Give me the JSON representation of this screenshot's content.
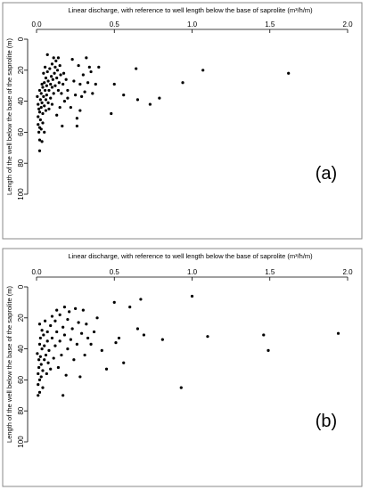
{
  "chart_data": [
    {
      "type": "scatter",
      "panel_label": "(a)",
      "xlabel": "Linear discharge, with reference to well length below the base of saprolite (m³/h/m)",
      "ylabel": "Length of the well below the base of the saprolite (m)",
      "xlim": [
        0,
        2.0
      ],
      "ylim": [
        0,
        100
      ],
      "y_reversed": true,
      "x_axis_position": "top",
      "x_ticks": [
        "0.0",
        "0.5",
        "1.0",
        "1.5",
        "2.0"
      ],
      "y_ticks": [
        "0",
        "20",
        "40",
        "60",
        "80",
        "100"
      ],
      "grid": false,
      "points": [
        [
          0.005,
          37
        ],
        [
          0.01,
          42
        ],
        [
          0.01,
          50
        ],
        [
          0.01,
          55
        ],
        [
          0.015,
          45
        ],
        [
          0.015,
          60
        ],
        [
          0.02,
          33
        ],
        [
          0.02,
          47
        ],
        [
          0.02,
          57
        ],
        [
          0.02,
          65
        ],
        [
          0.02,
          72
        ],
        [
          0.025,
          39
        ],
        [
          0.025,
          52
        ],
        [
          0.03,
          35
        ],
        [
          0.03,
          44
        ],
        [
          0.03,
          58
        ],
        [
          0.035,
          29
        ],
        [
          0.035,
          41
        ],
        [
          0.035,
          66
        ],
        [
          0.04,
          31
        ],
        [
          0.04,
          48
        ],
        [
          0.04,
          54
        ],
        [
          0.045,
          37
        ],
        [
          0.045,
          22
        ],
        [
          0.05,
          28
        ],
        [
          0.05,
          43
        ],
        [
          0.05,
          60
        ],
        [
          0.055,
          33
        ],
        [
          0.055,
          18
        ],
        [
          0.06,
          25
        ],
        [
          0.06,
          39
        ],
        [
          0.06,
          46
        ],
        [
          0.065,
          30
        ],
        [
          0.065,
          36
        ],
        [
          0.07,
          10
        ],
        [
          0.07,
          21
        ],
        [
          0.075,
          27
        ],
        [
          0.075,
          41
        ],
        [
          0.08,
          33
        ],
        [
          0.08,
          45
        ],
        [
          0.085,
          19
        ],
        [
          0.09,
          29
        ],
        [
          0.09,
          38
        ],
        [
          0.095,
          24
        ],
        [
          0.1,
          16
        ],
        [
          0.1,
          31
        ],
        [
          0.1,
          42
        ],
        [
          0.105,
          26
        ],
        [
          0.11,
          12
        ],
        [
          0.11,
          35
        ],
        [
          0.115,
          22
        ],
        [
          0.12,
          18
        ],
        [
          0.12,
          30
        ],
        [
          0.125,
          14
        ],
        [
          0.13,
          25
        ],
        [
          0.13,
          49
        ],
        [
          0.135,
          20
        ],
        [
          0.14,
          33
        ],
        [
          0.14,
          12
        ],
        [
          0.145,
          28
        ],
        [
          0.15,
          17
        ],
        [
          0.15,
          44
        ],
        [
          0.155,
          23
        ],
        [
          0.16,
          35
        ],
        [
          0.165,
          56
        ],
        [
          0.17,
          29
        ],
        [
          0.175,
          22
        ],
        [
          0.18,
          40
        ],
        [
          0.19,
          26
        ],
        [
          0.2,
          33
        ],
        [
          0.2,
          38
        ],
        [
          0.22,
          44
        ],
        [
          0.23,
          13
        ],
        [
          0.24,
          27
        ],
        [
          0.25,
          36
        ],
        [
          0.26,
          51
        ],
        [
          0.26,
          56
        ],
        [
          0.27,
          17
        ],
        [
          0.28,
          29
        ],
        [
          0.28,
          46
        ],
        [
          0.29,
          37
        ],
        [
          0.3,
          23
        ],
        [
          0.31,
          34
        ],
        [
          0.32,
          12
        ],
        [
          0.33,
          28
        ],
        [
          0.34,
          18
        ],
        [
          0.35,
          21
        ],
        [
          0.36,
          35
        ],
        [
          0.38,
          29
        ],
        [
          0.4,
          18
        ],
        [
          0.48,
          48
        ],
        [
          0.5,
          29
        ],
        [
          0.56,
          36
        ],
        [
          0.64,
          19
        ],
        [
          0.65,
          39
        ],
        [
          0.73,
          42
        ],
        [
          0.79,
          38
        ],
        [
          0.94,
          28
        ],
        [
          1.07,
          20
        ],
        [
          1.62,
          22
        ]
      ]
    },
    {
      "type": "scatter",
      "panel_label": "(b)",
      "xlabel": "Linear discharge, with reference to well length below the base of saprolite (m³/h/m)",
      "ylabel": "Length of the well below the base of the saprolite (m)",
      "xlim": [
        0,
        2.0
      ],
      "ylim": [
        0,
        100
      ],
      "y_reversed": true,
      "x_axis_position": "top",
      "x_ticks": [
        "0.0",
        "0.5",
        "1.0",
        "1.5",
        "2.0"
      ],
      "y_ticks": [
        "0",
        "20",
        "40",
        "60",
        "80",
        "100"
      ],
      "grid": false,
      "points": [
        [
          0.005,
          43
        ],
        [
          0.01,
          56
        ],
        [
          0.01,
          63
        ],
        [
          0.01,
          70
        ],
        [
          0.015,
          47
        ],
        [
          0.015,
          52
        ],
        [
          0.02,
          24
        ],
        [
          0.02,
          37
        ],
        [
          0.02,
          60
        ],
        [
          0.02,
          68
        ],
        [
          0.025,
          33
        ],
        [
          0.025,
          45
        ],
        [
          0.03,
          50
        ],
        [
          0.03,
          58
        ],
        [
          0.035,
          28
        ],
        [
          0.035,
          40
        ],
        [
          0.04,
          54
        ],
        [
          0.04,
          65
        ],
        [
          0.045,
          31
        ],
        [
          0.05,
          47
        ],
        [
          0.05,
          38
        ],
        [
          0.055,
          22
        ],
        [
          0.06,
          44
        ],
        [
          0.065,
          56
        ],
        [
          0.07,
          29
        ],
        [
          0.07,
          35
        ],
        [
          0.075,
          49
        ],
        [
          0.08,
          41
        ],
        [
          0.09,
          25
        ],
        [
          0.09,
          53
        ],
        [
          0.1,
          19
        ],
        [
          0.1,
          33
        ],
        [
          0.11,
          46
        ],
        [
          0.12,
          22
        ],
        [
          0.12,
          38
        ],
        [
          0.13,
          15
        ],
        [
          0.13,
          29
        ],
        [
          0.14,
          52
        ],
        [
          0.15,
          18
        ],
        [
          0.15,
          35
        ],
        [
          0.16,
          44
        ],
        [
          0.17,
          26
        ],
        [
          0.17,
          70
        ],
        [
          0.18,
          13
        ],
        [
          0.18,
          31
        ],
        [
          0.19,
          57
        ],
        [
          0.2,
          21
        ],
        [
          0.2,
          40
        ],
        [
          0.21,
          16
        ],
        [
          0.22,
          34
        ],
        [
          0.23,
          27
        ],
        [
          0.24,
          47
        ],
        [
          0.25,
          14
        ],
        [
          0.26,
          37
        ],
        [
          0.27,
          23
        ],
        [
          0.28,
          58
        ],
        [
          0.29,
          30
        ],
        [
          0.3,
          15
        ],
        [
          0.31,
          44
        ],
        [
          0.32,
          24
        ],
        [
          0.33,
          33
        ],
        [
          0.35,
          37
        ],
        [
          0.37,
          29
        ],
        [
          0.39,
          20
        ],
        [
          0.42,
          41
        ],
        [
          0.45,
          53
        ],
        [
          0.5,
          10
        ],
        [
          0.51,
          36
        ],
        [
          0.53,
          33
        ],
        [
          0.56,
          49
        ],
        [
          0.6,
          13
        ],
        [
          0.65,
          27
        ],
        [
          0.67,
          8
        ],
        [
          0.69,
          31
        ],
        [
          0.81,
          34
        ],
        [
          0.93,
          65
        ],
        [
          1.0,
          6
        ],
        [
          1.1,
          32
        ],
        [
          1.46,
          31
        ],
        [
          1.49,
          41
        ],
        [
          1.94,
          30
        ]
      ]
    }
  ]
}
